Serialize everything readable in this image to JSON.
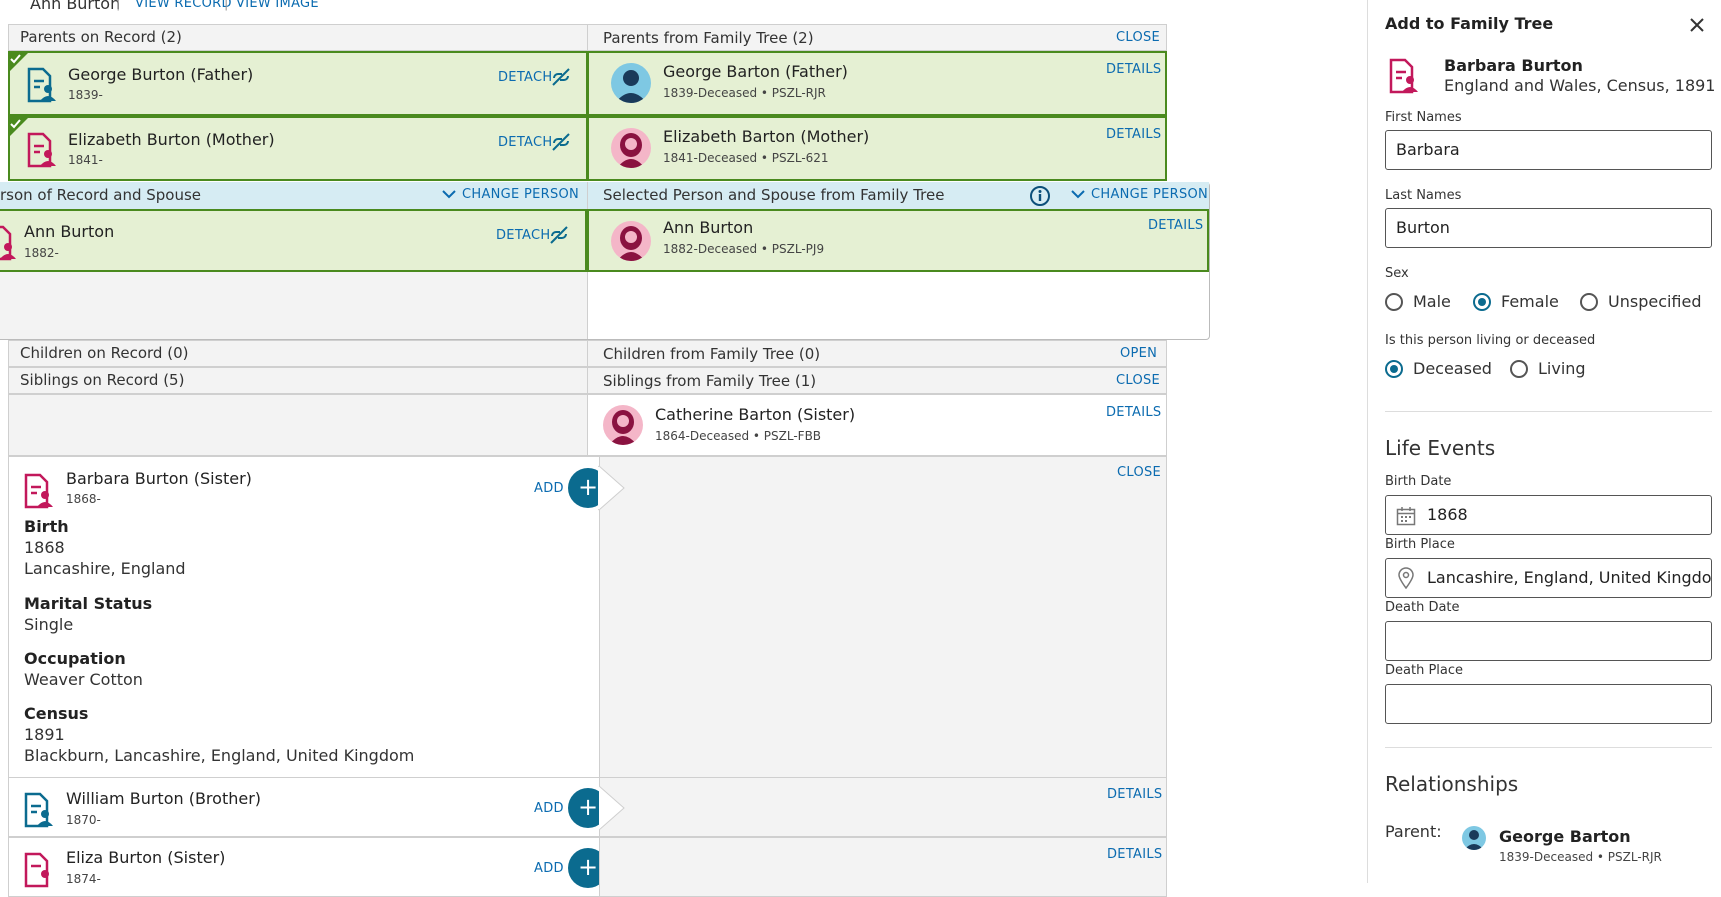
{
  "topbar": {
    "person": "Ann Burton",
    "view_record": "VIEW RECORD",
    "view_image": "VIEW IMAGE"
  },
  "parents_record": {
    "header": "Parents on Record (2)",
    "rows": [
      {
        "name": "George Burton (Father)",
        "dates": "1839-",
        "action": "DETACH"
      },
      {
        "name": "Elizabeth Burton (Mother)",
        "dates": "1841-",
        "action": "DETACH"
      }
    ]
  },
  "parents_tree": {
    "header": "Parents from Family Tree (2)",
    "close": "CLOSE",
    "rows": [
      {
        "name": "George Barton (Father)",
        "dates": "1839-Deceased • PSZL-RJR",
        "action": "DETAILS"
      },
      {
        "name": "Elizabeth Barton (Mother)",
        "dates": "1841-Deceased • PSZL-621",
        "action": "DETAILS"
      }
    ]
  },
  "selected_record": {
    "header": "rson of Record and Spouse",
    "change": "CHANGE PERSON",
    "name": "Ann Burton",
    "dates": "1882-",
    "action": "DETACH"
  },
  "selected_tree": {
    "header": "Selected Person and Spouse from Family Tree",
    "change": "CHANGE PERSON",
    "name": "Ann Burton",
    "dates": "1882-Deceased • PSZL-PJ9",
    "action": "DETAILS"
  },
  "children": {
    "record_header": "Children on Record (0)",
    "tree_header": "Children from Family Tree (0)",
    "open": "OPEN"
  },
  "siblings": {
    "record_header": "Siblings on Record (5)",
    "tree_header": "Siblings from Family Tree (1)",
    "close": "CLOSE",
    "tree_row": {
      "name": "Catherine Barton (Sister)",
      "dates": "1864-Deceased • PSZL-FBB",
      "action": "DETAILS"
    },
    "expanded": {
      "name": "Barbara Burton (Sister)",
      "dates": "1868-",
      "add": "ADD",
      "close": "CLOSE",
      "events": [
        {
          "title": "Birth",
          "lines": [
            "1868",
            "Lancashire, England"
          ]
        },
        {
          "title": "Marital Status",
          "lines": [
            "Single"
          ]
        },
        {
          "title": "Occupation",
          "lines": [
            "Weaver Cotton"
          ]
        },
        {
          "title": "Census",
          "lines": [
            "1891",
            "Blackburn, Lancashire, England, United Kingdom"
          ]
        }
      ]
    },
    "more": [
      {
        "name": "William Burton (Brother)",
        "dates": "1870-",
        "add": "ADD",
        "details": "DETAILS"
      },
      {
        "name": "Eliza Burton (Sister)",
        "dates": "1874-",
        "add": "ADD",
        "details": "DETAILS"
      }
    ]
  },
  "panel": {
    "title": "Add to Family Tree",
    "person_name": "Barbara Burton",
    "person_source": "England and Wales, Census, 1891",
    "first_names_label": "First Names",
    "first_names": "Barbara",
    "last_names_label": "Last Names",
    "last_names": "Burton",
    "sex_label": "Sex",
    "sex_options": [
      "Male",
      "Female",
      "Unspecified"
    ],
    "living_label": "Is this person living or deceased",
    "living_options": [
      "Deceased",
      "Living"
    ],
    "life_events": "Life Events",
    "birth_date_label": "Birth Date",
    "birth_date": "1868",
    "birth_place_label": "Birth Place",
    "birth_place": "Lancashire, England, United Kingdom",
    "death_date_label": "Death Date",
    "death_place_label": "Death Place",
    "relationships": "Relationships",
    "parent_label": "Parent:",
    "parent_name": "George Barton",
    "parent_dates": "1839-Deceased • PSZL-RJR"
  }
}
